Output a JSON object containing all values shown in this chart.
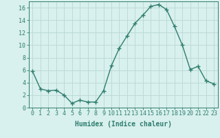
{
  "x": [
    0,
    1,
    2,
    3,
    4,
    5,
    6,
    7,
    8,
    9,
    10,
    11,
    12,
    13,
    14,
    15,
    16,
    17,
    18,
    19,
    20,
    21,
    22,
    23
  ],
  "y": [
    5.8,
    3.0,
    2.7,
    2.8,
    2.0,
    0.7,
    1.2,
    0.9,
    0.9,
    2.7,
    6.7,
    9.5,
    11.5,
    13.5,
    14.8,
    16.2,
    16.5,
    15.7,
    13.0,
    10.0,
    6.1,
    6.6,
    4.3,
    3.8
  ],
  "line_color": "#2e7d6e",
  "marker": "+",
  "marker_size": 4,
  "bg_color": "#d8f0ee",
  "grid_color": "#b8d8d4",
  "xlabel": "Humidex (Indice chaleur)",
  "ylim": [
    0,
    17
  ],
  "xlim": [
    -0.5,
    23.5
  ],
  "yticks": [
    0,
    2,
    4,
    6,
    8,
    10,
    12,
    14,
    16
  ],
  "xticks": [
    0,
    1,
    2,
    3,
    4,
    5,
    6,
    7,
    8,
    9,
    10,
    11,
    12,
    13,
    14,
    15,
    16,
    17,
    18,
    19,
    20,
    21,
    22,
    23
  ],
  "xtick_labels": [
    "0",
    "1",
    "2",
    "3",
    "4",
    "5",
    "6",
    "7",
    "8",
    "9",
    "10",
    "11",
    "12",
    "13",
    "14",
    "15",
    "16",
    "17",
    "18",
    "19",
    "20",
    "21",
    "22",
    "23"
  ],
  "xlabel_fontsize": 7,
  "tick_fontsize": 6,
  "line_width": 1.0,
  "marker_color": "#2e7d6e"
}
